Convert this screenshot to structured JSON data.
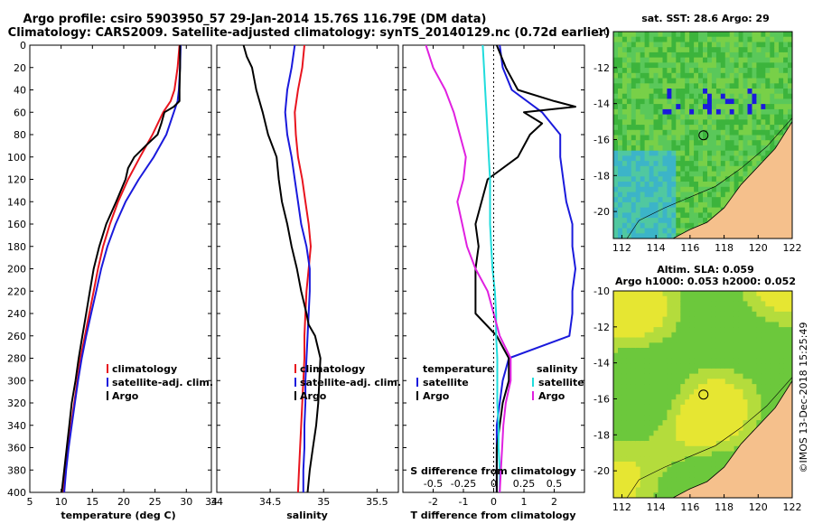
{
  "title_line1": "Argo profile: csiro 5903950_57 29-Jan-2014 15.76S 116.79E (DM data)",
  "title_line2": "Climatology: CARS2009. Satellite-adjusted climatology: synTS_20140129.nc (0.72d earlier)",
  "sst_title": "sat. SST: 28.6 Argo: 29",
  "sla_title1": "Altim. SLA: 0.059",
  "sla_title2": "Argo h1000: 0.053 h2000: 0.052",
  "watermark": "©IMOS 13-Dec-2018 15:25:49",
  "colors": {
    "climatology": "#e8141e",
    "satellite": "#1a1adc",
    "argo": "#000000",
    "sat_salinity": "#20dcdc",
    "temp_diff": "#e020e0",
    "land": "#f5c08c"
  },
  "chart_data": [
    {
      "type": "line",
      "id": "temperature",
      "xlabel": "temperature (deg C)",
      "ylabel": "",
      "xlim": [
        5,
        34
      ],
      "ylim": [
        400,
        0
      ],
      "xticks": [
        "5",
        "10",
        "15",
        "20",
        "25",
        "30",
        "34"
      ],
      "xtick_values": [
        5,
        10,
        15,
        20,
        25,
        30,
        34
      ],
      "yticks": [
        "0",
        "20",
        "40",
        "60",
        "80",
        "100",
        "120",
        "140",
        "160",
        "180",
        "200",
        "220",
        "240",
        "260",
        "280",
        "300",
        "320",
        "340",
        "360",
        "380",
        "400"
      ],
      "legend": [
        "climatology",
        "satellite-adj. clim.",
        "Argo"
      ],
      "series": [
        {
          "name": "climatology",
          "depth": [
            0,
            20,
            40,
            50,
            60,
            80,
            100,
            120,
            140,
            160,
            180,
            200,
            220,
            240,
            260,
            280,
            300,
            320,
            340,
            360,
            380,
            400
          ],
          "values": [
            28.9,
            28.6,
            28.1,
            27.5,
            26.3,
            24.6,
            22.6,
            20.7,
            19.1,
            17.8,
            16.7,
            15.9,
            15.2,
            14.5,
            13.8,
            13.1,
            12.6,
            12.1,
            11.6,
            11.1,
            10.7,
            10.4
          ]
        },
        {
          "name": "satellite-adj. clim.",
          "depth": [
            0,
            20,
            40,
            50,
            60,
            80,
            100,
            120,
            140,
            160,
            180,
            200,
            220,
            240,
            260,
            280,
            300,
            320,
            340,
            360,
            380,
            400
          ],
          "values": [
            29.1,
            29.0,
            28.8,
            28.6,
            28.0,
            26.8,
            24.8,
            22.4,
            20.3,
            18.7,
            17.4,
            16.4,
            15.6,
            14.8,
            14.0,
            13.3,
            12.7,
            12.2,
            11.7,
            11.2,
            10.8,
            10.5
          ]
        },
        {
          "name": "Argo",
          "depth": [
            0,
            20,
            40,
            50,
            55,
            60,
            70,
            80,
            90,
            100,
            110,
            120,
            140,
            160,
            180,
            200,
            220,
            240,
            260,
            280,
            300,
            320,
            340,
            360,
            380,
            400
          ],
          "values": [
            29.0,
            29.0,
            28.9,
            28.9,
            28.0,
            26.5,
            26.0,
            25.4,
            23.5,
            21.7,
            20.7,
            20.3,
            18.8,
            17.2,
            16.1,
            15.2,
            14.6,
            14.0,
            13.4,
            12.8,
            12.3,
            11.7,
            11.3,
            10.9,
            10.5,
            10.1
          ]
        }
      ]
    },
    {
      "type": "line",
      "id": "salinity",
      "xlabel": "salinity",
      "xlim": [
        34,
        35.7
      ],
      "ylim": [
        400,
        0
      ],
      "xticks": [
        "34",
        "34.5",
        "35",
        "35.5"
      ],
      "xtick_values": [
        34,
        34.5,
        35,
        35.5
      ],
      "legend": [
        "climatology",
        "satellite-adj. clim.",
        "Argo"
      ],
      "series": [
        {
          "name": "climatology",
          "depth": [
            0,
            20,
            40,
            60,
            80,
            100,
            120,
            140,
            160,
            180,
            200,
            220,
            240,
            260,
            280,
            300,
            320,
            340,
            360,
            380,
            400
          ],
          "values": [
            34.82,
            34.8,
            34.76,
            34.73,
            34.74,
            34.76,
            34.8,
            34.83,
            34.86,
            34.88,
            34.86,
            34.84,
            34.83,
            34.82,
            34.82,
            34.81,
            34.8,
            34.79,
            34.78,
            34.77,
            34.76
          ]
        },
        {
          "name": "satellite-adj. clim.",
          "depth": [
            0,
            20,
            40,
            60,
            80,
            100,
            120,
            140,
            160,
            180,
            200,
            220,
            240,
            260,
            280,
            300,
            320,
            340,
            360,
            380,
            400
          ],
          "values": [
            34.73,
            34.7,
            34.66,
            34.64,
            34.66,
            34.7,
            34.73,
            34.76,
            34.79,
            34.84,
            34.87,
            34.87,
            34.86,
            34.85,
            34.84,
            34.83,
            34.83,
            34.82,
            34.82,
            34.81,
            34.81
          ]
        },
        {
          "name": "Argo",
          "depth": [
            0,
            10,
            20,
            40,
            60,
            80,
            100,
            120,
            140,
            160,
            180,
            200,
            220,
            240,
            250,
            260,
            280,
            300,
            320,
            340,
            360,
            380,
            400
          ],
          "values": [
            34.25,
            34.28,
            34.33,
            34.37,
            34.43,
            34.48,
            34.56,
            34.58,
            34.61,
            34.66,
            34.7,
            34.75,
            34.79,
            34.84,
            34.86,
            34.92,
            34.97,
            34.96,
            34.95,
            34.93,
            34.9,
            34.87,
            34.85
          ]
        }
      ]
    },
    {
      "type": "line",
      "id": "difference",
      "xlabel": "T difference from climatology",
      "xlabel_top": "S difference from climatology",
      "xlim": [
        -3,
        3
      ],
      "ylim": [
        400,
        0
      ],
      "xticks": [
        "-2",
        "-1",
        "0",
        "1",
        "2"
      ],
      "xtick_values": [
        -2,
        -1,
        0,
        1,
        2
      ],
      "s_xticks": [
        "-0.5",
        "-0.25",
        "0",
        "0.25",
        "0.5"
      ],
      "s_xtick_values": [
        -0.5,
        -0.25,
        0,
        0.25,
        0.5
      ],
      "legend_temperature_title": "temperature",
      "legend_salinity_title": "salinity",
      "legend": [
        "satellite",
        "Argo",
        "satellite",
        "Argo"
      ],
      "series": [
        {
          "name": "T satellite",
          "depth": [
            0,
            20,
            40,
            60,
            80,
            100,
            120,
            140,
            160,
            180,
            200,
            220,
            240,
            260,
            280,
            300,
            320,
            340,
            360,
            380,
            400
          ],
          "values": [
            0.2,
            0.3,
            0.6,
            1.6,
            2.2,
            2.2,
            2.3,
            2.4,
            2.6,
            2.6,
            2.7,
            2.6,
            2.6,
            2.5,
            0.5,
            0.3,
            0.2,
            0.1,
            0.1,
            0.1,
            0.1
          ]
        },
        {
          "name": "T Argo",
          "depth": [
            0,
            20,
            40,
            50,
            55,
            60,
            70,
            80,
            90,
            100,
            120,
            140,
            160,
            180,
            200,
            220,
            240,
            260,
            270,
            280,
            300,
            320,
            340,
            360,
            380,
            400
          ],
          "values": [
            0.1,
            0.4,
            0.8,
            2.0,
            2.7,
            1.0,
            1.6,
            1.2,
            1.0,
            0.8,
            -0.2,
            -0.4,
            -0.6,
            -0.5,
            -0.6,
            -0.6,
            -0.6,
            0.1,
            0.3,
            0.5,
            0.5,
            0.3,
            0.2,
            0.1,
            0.1,
            0.1
          ]
        },
        {
          "name": "S satellite",
          "depth": [
            0,
            20,
            40,
            60,
            80,
            100,
            120,
            140,
            160,
            180,
            200,
            220,
            240,
            260,
            280,
            300,
            320,
            340,
            360,
            380,
            400
          ],
          "values": [
            -0.09,
            -0.08,
            -0.07,
            -0.06,
            -0.05,
            -0.04,
            -0.03,
            -0.03,
            -0.03,
            -0.02,
            -0.01,
            0.01,
            0.02,
            0.02,
            0.03,
            0.03,
            0.03,
            0.04,
            0.04,
            0.05,
            0.05
          ]
        },
        {
          "name": "S Argo",
          "depth": [
            0,
            20,
            40,
            60,
            80,
            100,
            120,
            140,
            160,
            180,
            200,
            220,
            240,
            260,
            280,
            300,
            320,
            340,
            360,
            380,
            400
          ],
          "values": [
            -0.56,
            -0.5,
            -0.4,
            -0.33,
            -0.28,
            -0.23,
            -0.25,
            -0.3,
            -0.26,
            -0.22,
            -0.15,
            -0.05,
            0.0,
            0.05,
            0.14,
            0.14,
            0.1,
            0.08,
            0.07,
            0.06,
            0.05
          ]
        }
      ]
    },
    {
      "type": "heatmap",
      "id": "sst_map",
      "title": "sat. SST: 28.6 Argo: 29",
      "xlim": [
        111.5,
        122
      ],
      "ylim": [
        -21.5,
        -10
      ],
      "xticks": [
        "112",
        "114",
        "116",
        "118",
        "120",
        "122"
      ],
      "xtick_values": [
        112,
        114,
        116,
        118,
        120,
        122
      ],
      "yticks": [
        "-10",
        "-12",
        "-14",
        "-16",
        "-18",
        "-20"
      ],
      "ytick_values": [
        -10,
        -12,
        -14,
        -16,
        -18,
        -20
      ],
      "argo_position": {
        "lon": 116.79,
        "lat": -15.76
      }
    },
    {
      "type": "heatmap",
      "id": "sla_map",
      "title": "Altim. SLA: 0.059",
      "xlim": [
        111.5,
        122
      ],
      "ylim": [
        -21.5,
        -10
      ],
      "xticks": [
        "112",
        "114",
        "116",
        "118",
        "120",
        "122"
      ],
      "xtick_values": [
        112,
        114,
        116,
        118,
        120,
        122
      ],
      "yticks": [
        "-10",
        "-12",
        "-14",
        "-16",
        "-18",
        "-20"
      ],
      "ytick_values": [
        -10,
        -12,
        -14,
        -16,
        -18,
        -20
      ],
      "argo_position": {
        "lon": 116.79,
        "lat": -15.76
      }
    }
  ]
}
